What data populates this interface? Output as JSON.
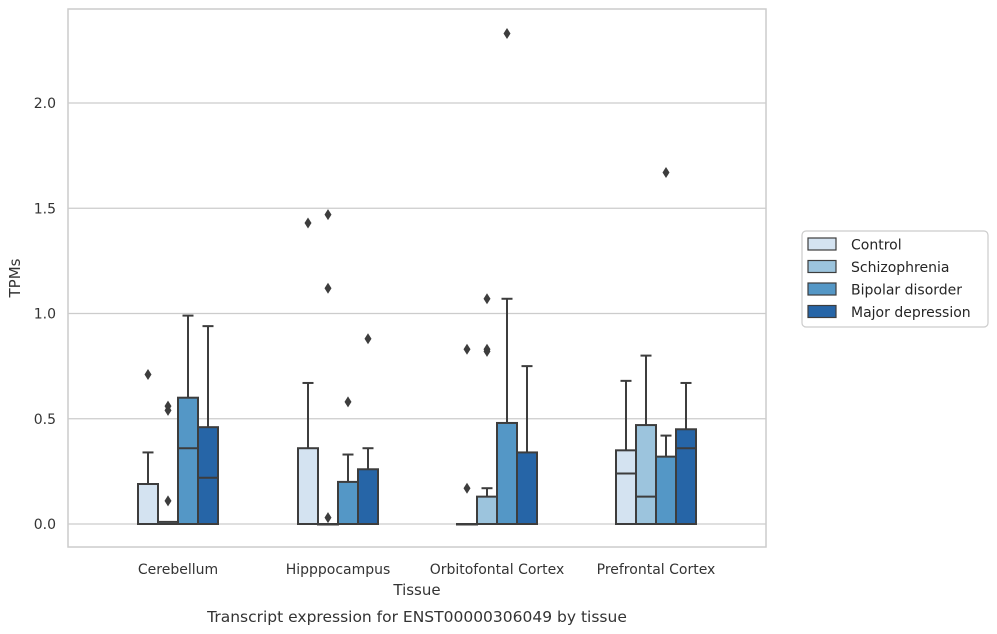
{
  "chart_data": {
    "type": "box",
    "title": "",
    "caption": "Transcript expression for ENST00000306049 by tissue",
    "xlabel": "Tissue",
    "ylabel": "TPMs",
    "ylim": [
      -0.11,
      2.46
    ],
    "yticks": [
      0.0,
      0.5,
      1.0,
      1.5,
      2.0
    ],
    "ytick_labels": [
      "0.0",
      "0.5",
      "1.0",
      "1.5",
      "2.0"
    ],
    "grid": true,
    "legend_position": "right",
    "categories": [
      "Cerebellum",
      "Hipppocampus",
      "Orbitofontal Cortex",
      "Prefrontal Cortex"
    ],
    "series": [
      {
        "name": "Control",
        "color": "#d4e3f1",
        "boxes": [
          {
            "q1": 0.0,
            "median": 0.0,
            "q3": 0.19,
            "whisker_low": 0.0,
            "whisker_high": 0.34,
            "outliers": [
              0.71
            ]
          },
          {
            "q1": 0.0,
            "median": 0.0,
            "q3": 0.36,
            "whisker_low": 0.0,
            "whisker_high": 0.67,
            "outliers": [
              1.43
            ]
          },
          {
            "q1": 0.0,
            "median": 0.0,
            "q3": 0.0,
            "whisker_low": 0.0,
            "whisker_high": 0.0,
            "outliers": [
              0.17,
              0.83
            ]
          },
          {
            "q1": 0.0,
            "median": 0.24,
            "q3": 0.35,
            "whisker_low": 0.0,
            "whisker_high": 0.68,
            "outliers": []
          }
        ]
      },
      {
        "name": "Schizophrenia",
        "color": "#9cc4dd",
        "boxes": [
          {
            "q1": 0.0,
            "median": 0.0,
            "q3": 0.01,
            "whisker_low": 0.0,
            "whisker_high": 0.01,
            "outliers": [
              0.11,
              0.54,
              0.56
            ]
          },
          {
            "q1": 0.0,
            "median": 0.0,
            "q3": 0.0,
            "whisker_low": 0.0,
            "whisker_high": 0.0,
            "outliers": [
              0.03,
              1.12,
              1.47
            ]
          },
          {
            "q1": 0.0,
            "median": 0.0,
            "q3": 0.13,
            "whisker_low": 0.0,
            "whisker_high": 0.17,
            "outliers": [
              0.82,
              0.83,
              1.07
            ]
          },
          {
            "q1": 0.0,
            "median": 0.13,
            "q3": 0.47,
            "whisker_low": 0.0,
            "whisker_high": 0.8,
            "outliers": []
          }
        ]
      },
      {
        "name": "Bipolar disorder",
        "color": "#5497c6",
        "boxes": [
          {
            "q1": 0.0,
            "median": 0.36,
            "q3": 0.6,
            "whisker_low": 0.0,
            "whisker_high": 0.99,
            "outliers": []
          },
          {
            "q1": 0.0,
            "median": 0.0,
            "q3": 0.2,
            "whisker_low": 0.0,
            "whisker_high": 0.33,
            "outliers": [
              0.58
            ]
          },
          {
            "q1": 0.0,
            "median": 0.0,
            "q3": 0.48,
            "whisker_low": 0.0,
            "whisker_high": 1.07,
            "outliers": [
              2.33
            ]
          },
          {
            "q1": 0.0,
            "median": 0.0,
            "q3": 0.32,
            "whisker_low": 0.0,
            "whisker_high": 0.42,
            "outliers": [
              1.67
            ]
          }
        ]
      },
      {
        "name": "Major depression",
        "color": "#2665a7",
        "boxes": [
          {
            "q1": 0.0,
            "median": 0.22,
            "q3": 0.46,
            "whisker_low": 0.0,
            "whisker_high": 0.94,
            "outliers": []
          },
          {
            "q1": 0.0,
            "median": 0.0,
            "q3": 0.26,
            "whisker_low": 0.0,
            "whisker_high": 0.36,
            "outliers": [
              0.88
            ]
          },
          {
            "q1": 0.0,
            "median": 0.0,
            "q3": 0.34,
            "whisker_low": 0.0,
            "whisker_high": 0.75,
            "outliers": []
          },
          {
            "q1": 0.0,
            "median": 0.36,
            "q3": 0.45,
            "whisker_low": 0.0,
            "whisker_high": 0.67,
            "outliers": []
          }
        ]
      }
    ]
  }
}
